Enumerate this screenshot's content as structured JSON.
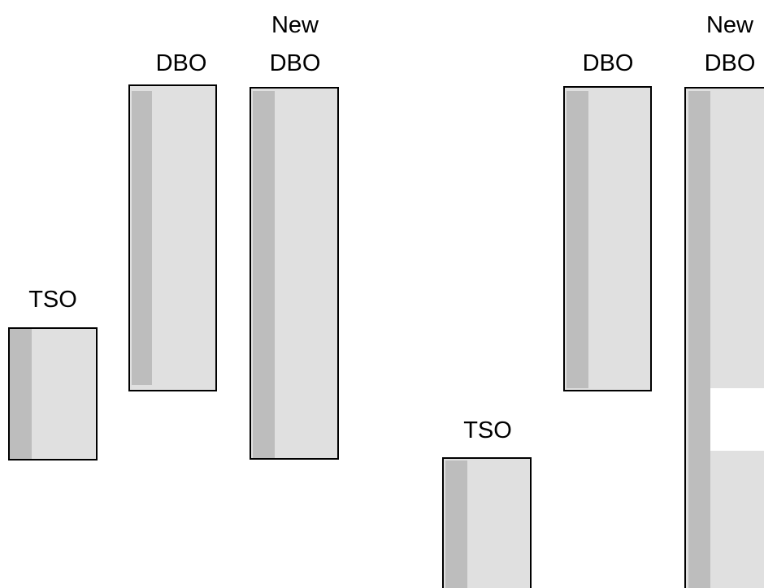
{
  "colors": {
    "outline": "#000000",
    "fill": "#e0e0e0",
    "shade": "#bdbdbd",
    "gap": "#ffffff",
    "background": "#ffffff"
  },
  "left_group": {
    "tso_label": "TSO",
    "dbo_label": "DBO",
    "new_dbo_label_line1": "New",
    "new_dbo_label_line2": "DBO"
  },
  "right_group": {
    "tso_label": "TSO",
    "dbo_label": "DBO",
    "new_dbo_label_line1": "New",
    "new_dbo_label_line2": "DBO"
  }
}
